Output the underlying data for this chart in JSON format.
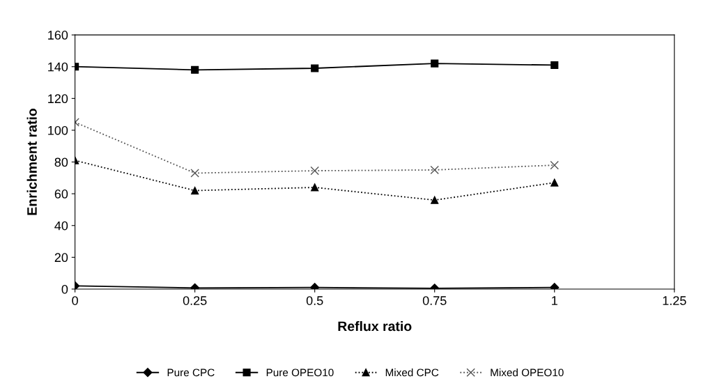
{
  "chart_data": {
    "type": "line",
    "xlabel": "Reflux ratio",
    "ylabel": "Enrichment ratio",
    "x": [
      0,
      0.25,
      0.5,
      0.75,
      1
    ],
    "xlim": [
      0,
      1.25
    ],
    "xticks": [
      0,
      0.25,
      0.5,
      0.75,
      1,
      1.25
    ],
    "ylim": [
      0,
      160
    ],
    "yticks": [
      0,
      20,
      40,
      60,
      80,
      100,
      120,
      140,
      160
    ],
    "grid": false,
    "legend": "bottom",
    "series": [
      {
        "name": "Pure CPC",
        "color": "#000000",
        "marker": "diamond",
        "line_style": "solid",
        "values": [
          2,
          0.7,
          1,
          0.5,
          1
        ]
      },
      {
        "name": "Pure OPEO10",
        "color": "#000000",
        "marker": "square",
        "line_style": "solid",
        "values": [
          140,
          138,
          139,
          142,
          141
        ]
      },
      {
        "name": "Mixed CPC",
        "color": "#000000",
        "marker": "triangle",
        "line_style": "dotted",
        "values": [
          81,
          62,
          64,
          56,
          67
        ]
      },
      {
        "name": "Mixed OPEO10",
        "color": "#555555",
        "marker": "cross",
        "line_style": "dotted",
        "values": [
          105,
          73,
          74.5,
          75,
          78
        ]
      }
    ]
  }
}
